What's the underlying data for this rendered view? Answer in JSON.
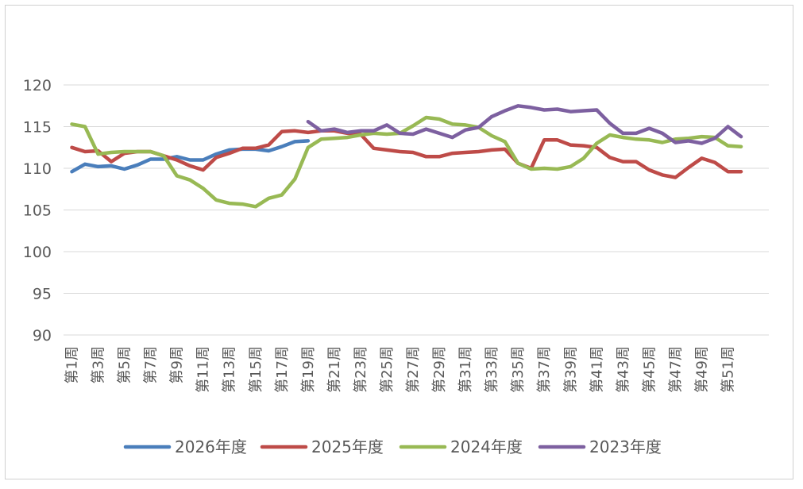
{
  "chart_data": {
    "type": "line",
    "title": "",
    "xlabel": "",
    "ylabel": "",
    "ylim": [
      90,
      120
    ],
    "yticks": [
      90,
      95,
      100,
      105,
      110,
      115,
      120
    ],
    "grid": "horizontal",
    "legend_position": "bottom",
    "categories": [
      "第1周",
      "第2周",
      "第3周",
      "第4周",
      "第5周",
      "第6周",
      "第7周",
      "第8周",
      "第9周",
      "第10周",
      "第11周",
      "第12周",
      "第13周",
      "第14周",
      "第15周",
      "第16周",
      "第17周",
      "第18周",
      "第19周",
      "第20周",
      "第21周",
      "第22周",
      "第23周",
      "第24周",
      "第25周",
      "第26周",
      "第27周",
      "第28周",
      "第29周",
      "第30周",
      "第31周",
      "第32周",
      "第33周",
      "第34周",
      "第35周",
      "第36周",
      "第37周",
      "第38周",
      "第39周",
      "第40周",
      "第41周",
      "第42周",
      "第43周",
      "第44周",
      "第45周",
      "第46周",
      "第47周",
      "第48周",
      "第49周",
      "第50周",
      "第51周",
      "第52周"
    ],
    "xtick_labels": [
      "第1周",
      "第3周",
      "第5周",
      "第7周",
      "第9周",
      "第11周",
      "第13周",
      "第15周",
      "第17周",
      "第19周",
      "第21周",
      "第23周",
      "第25周",
      "第27周",
      "第29周",
      "第31周",
      "第33周",
      "第35周",
      "第37周",
      "第39周",
      "第41周",
      "第43周",
      "第45周",
      "第47周",
      "第49周",
      "第51周"
    ],
    "series": [
      {
        "name": "2026年度",
        "color": "#4A7EBB",
        "values": [
          109.6,
          110.5,
          110.2,
          110.3,
          109.9,
          110.4,
          111.1,
          111.1,
          111.4,
          111.0,
          111.0,
          111.7,
          112.2,
          112.3,
          112.3,
          112.1,
          112.6,
          113.2,
          113.3,
          null,
          null,
          null,
          null,
          null,
          null,
          null,
          null,
          null,
          null,
          null,
          null,
          null,
          null,
          null,
          null,
          null,
          null,
          null,
          null,
          null,
          null,
          null,
          null,
          null,
          null,
          null,
          null,
          null,
          null,
          null,
          null,
          null
        ]
      },
      {
        "name": "2025年度",
        "color": "#BE4B48",
        "values": [
          112.5,
          112.0,
          112.1,
          110.8,
          111.8,
          112.0,
          112.0,
          111.5,
          111.0,
          110.3,
          109.8,
          111.3,
          111.8,
          112.4,
          112.4,
          112.8,
          114.4,
          114.5,
          114.3,
          114.5,
          114.5,
          114.2,
          114.1,
          112.4,
          112.2,
          112.0,
          111.9,
          111.4,
          111.4,
          111.8,
          111.9,
          112.0,
          112.2,
          112.3,
          110.6,
          110.0,
          113.4,
          113.4,
          112.8,
          112.7,
          112.5,
          111.3,
          110.8,
          110.8,
          109.8,
          109.2,
          108.9,
          110.1,
          111.2,
          110.7,
          109.6,
          109.6
        ]
      },
      {
        "name": "2024年度",
        "color": "#98B954",
        "values": [
          115.3,
          115.0,
          111.7,
          111.9,
          112.0,
          112.0,
          112.0,
          111.5,
          109.1,
          108.6,
          107.6,
          106.2,
          105.8,
          105.7,
          105.4,
          106.4,
          106.8,
          108.7,
          112.5,
          113.5,
          113.6,
          113.7,
          114.0,
          114.2,
          114.1,
          114.2,
          115.1,
          116.1,
          115.9,
          115.3,
          115.2,
          114.9,
          113.9,
          113.2,
          110.6,
          109.9,
          110.0,
          109.9,
          110.2,
          111.2,
          113.0,
          114.0,
          113.7,
          113.5,
          113.4,
          113.1,
          113.5,
          113.6,
          113.8,
          113.7,
          112.7,
          112.6
        ]
      },
      {
        "name": "2023年度",
        "color": "#7D60A0",
        "values": [
          null,
          null,
          null,
          null,
          null,
          null,
          null,
          null,
          null,
          null,
          null,
          null,
          null,
          null,
          null,
          null,
          null,
          null,
          115.6,
          114.5,
          114.7,
          114.3,
          114.5,
          114.5,
          115.2,
          114.2,
          114.1,
          114.7,
          114.2,
          113.7,
          114.6,
          114.9,
          116.2,
          116.9,
          117.5,
          117.3,
          117.0,
          117.1,
          116.8,
          116.9,
          117.0,
          115.4,
          114.2,
          114.2,
          114.8,
          114.2,
          113.1,
          113.3,
          113.0,
          113.6,
          115.0,
          113.8
        ]
      }
    ]
  }
}
